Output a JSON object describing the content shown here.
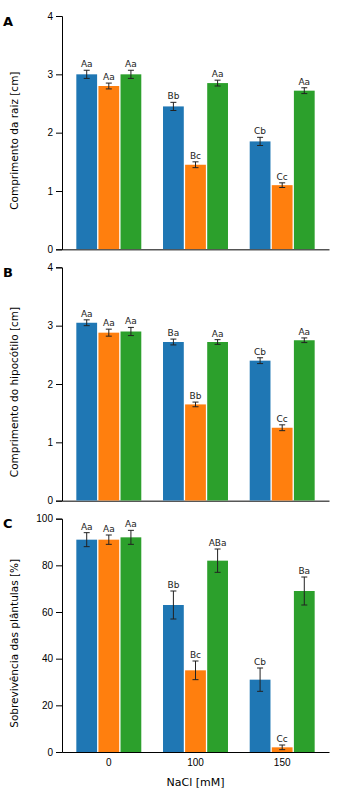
{
  "chart_data": [
    {
      "type": "bar",
      "title": "A",
      "y_label": "Comprimento da raiz [cm]",
      "categories": [
        null,
        null,
        null
      ],
      "tick_labels": "y",
      "ylim": [
        0,
        4
      ],
      "yticks": [
        0,
        1,
        2,
        3,
        4
      ],
      "series": [
        {
          "values": [
            3.0,
            2.45,
            1.85
          ],
          "errors": [
            0.07,
            0.07,
            0.07
          ],
          "annotations": [
            "Aa",
            "Bb",
            "Cb"
          ]
        },
        {
          "values": [
            2.8,
            1.45,
            1.1
          ],
          "errors": [
            0.05,
            0.05,
            0.04
          ],
          "annotations": [
            "Aa",
            "Bc",
            "Cc"
          ]
        },
        {
          "values": [
            3.0,
            2.85,
            2.72
          ],
          "errors": [
            0.07,
            0.05,
            0.05
          ],
          "annotations": [
            "Aa",
            "Aa",
            "Aa"
          ]
        }
      ]
    },
    {
      "type": "bar",
      "title": "B",
      "y_label": "Comprimento do hipocótilo [cm]",
      "categories": [
        null,
        null,
        null
      ],
      "tick_labels": "y",
      "ylim": [
        0,
        4
      ],
      "yticks": [
        0,
        1,
        2,
        3,
        4
      ],
      "series": [
        {
          "values": [
            3.05,
            2.72,
            2.4
          ],
          "errors": [
            0.05,
            0.05,
            0.05
          ],
          "annotations": [
            "Aa",
            "Ba",
            "Cb"
          ]
        },
        {
          "values": [
            2.88,
            1.65,
            1.25
          ],
          "errors": [
            0.06,
            0.04,
            0.05
          ],
          "annotations": [
            "Aa",
            "Bb",
            "Cc"
          ]
        },
        {
          "values": [
            2.9,
            2.72,
            2.75
          ],
          "errors": [
            0.07,
            0.04,
            0.04
          ],
          "annotations": [
            "Aa",
            "Aa",
            "Aa"
          ]
        }
      ]
    },
    {
      "type": "bar",
      "title": "C",
      "y_label": "Sobrevivência das plântulas [%]",
      "x_label": "NaCl [mM]",
      "categories": [
        "0",
        "100",
        "150"
      ],
      "ylim": [
        0,
        100
      ],
      "yticks": [
        0,
        20,
        40,
        60,
        80,
        100
      ],
      "series": [
        {
          "values": [
            91,
            63,
            31
          ],
          "errors": [
            3,
            6,
            5
          ],
          "annotations": [
            "Aa",
            "Bb",
            "Cb"
          ]
        },
        {
          "values": [
            91,
            35,
            2
          ],
          "errors": [
            2,
            4,
            1
          ],
          "annotations": [
            "Aa",
            "Bc",
            "Cc"
          ]
        },
        {
          "values": [
            92,
            82,
            69
          ],
          "errors": [
            3,
            5,
            6
          ],
          "annotations": [
            "Aa",
            "ABa",
            "Ba"
          ]
        }
      ]
    }
  ]
}
